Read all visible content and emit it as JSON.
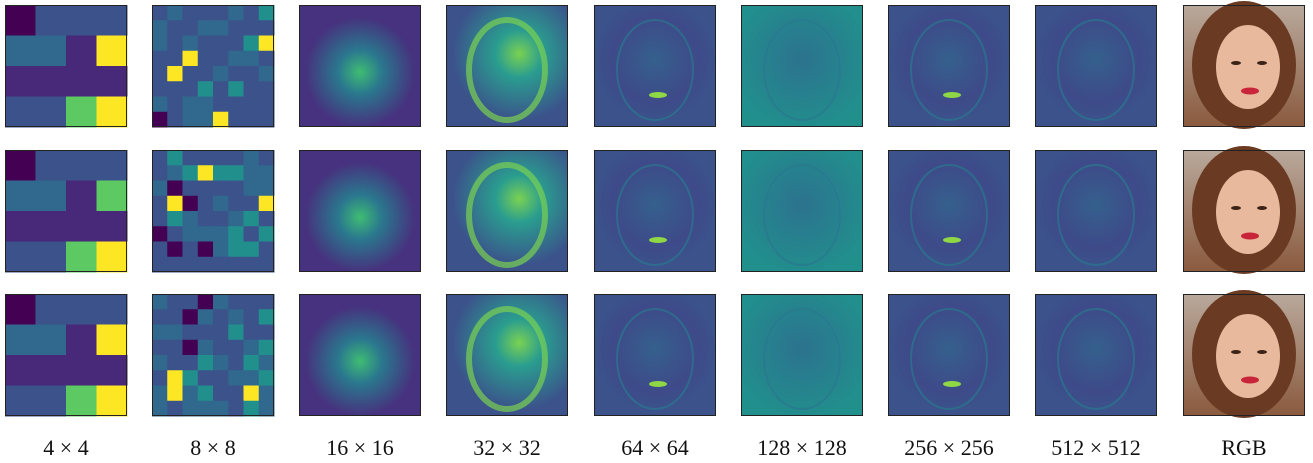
{
  "columns": [
    "4 × 4",
    "8 × 8",
    "16 × 16",
    "32 × 32",
    "64 × 64",
    "128 × 128",
    "256 × 256",
    "512 × 512",
    "RGB"
  ]
}
